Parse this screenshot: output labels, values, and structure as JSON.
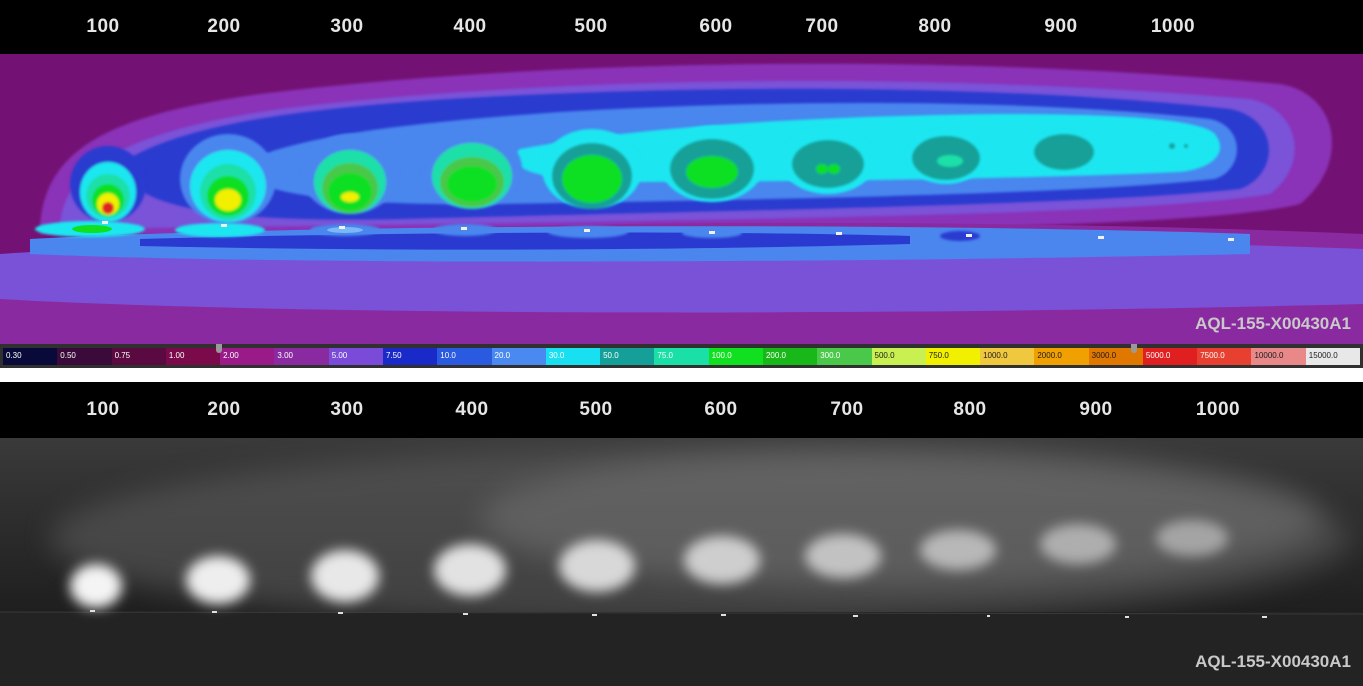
{
  "distances": [
    "100",
    "200",
    "300",
    "400",
    "500",
    "600",
    "700",
    "800",
    "900",
    "1000"
  ],
  "model": "AQL-155-X00430A1",
  "legend": [
    {
      "label": "0.30",
      "color": "#0a0a3a"
    },
    {
      "label": "0.50",
      "color": "#3a0a3a"
    },
    {
      "label": "0.75",
      "color": "#5a0a40"
    },
    {
      "label": "1.00",
      "color": "#7a0a4a"
    },
    {
      "label": "2.00",
      "color": "#9a1a8a"
    },
    {
      "label": "3.00",
      "color": "#8a2aa0"
    },
    {
      "label": "5.00",
      "color": "#7a4ad8"
    },
    {
      "label": "7.50",
      "color": "#1a2ac8"
    },
    {
      "label": "10.0",
      "color": "#2a5ae0"
    },
    {
      "label": "20.0",
      "color": "#4a8af0"
    },
    {
      "label": "30.0",
      "color": "#18e0f0"
    },
    {
      "label": "50.0",
      "color": "#14a098"
    },
    {
      "label": "75.0",
      "color": "#1ae0a8"
    },
    {
      "label": "100.0",
      "color": "#10e020"
    },
    {
      "label": "200.0",
      "color": "#18b818"
    },
    {
      "label": "300.0",
      "color": "#4ac84a"
    },
    {
      "label": "500.0",
      "color": "#c8f050"
    },
    {
      "label": "750.0",
      "color": "#f0f000"
    },
    {
      "label": "1000.0",
      "color": "#f0c840"
    },
    {
      "label": "2000.0",
      "color": "#f0a000"
    },
    {
      "label": "3000.0",
      "color": "#e07800"
    },
    {
      "label": "5000.0",
      "color": "#e02020"
    },
    {
      "label": "7500.0",
      "color": "#e84030"
    },
    {
      "label": "10000.0",
      "color": "#e88888"
    },
    {
      "label": "15000.0",
      "color": "#e8e8e8"
    }
  ]
}
